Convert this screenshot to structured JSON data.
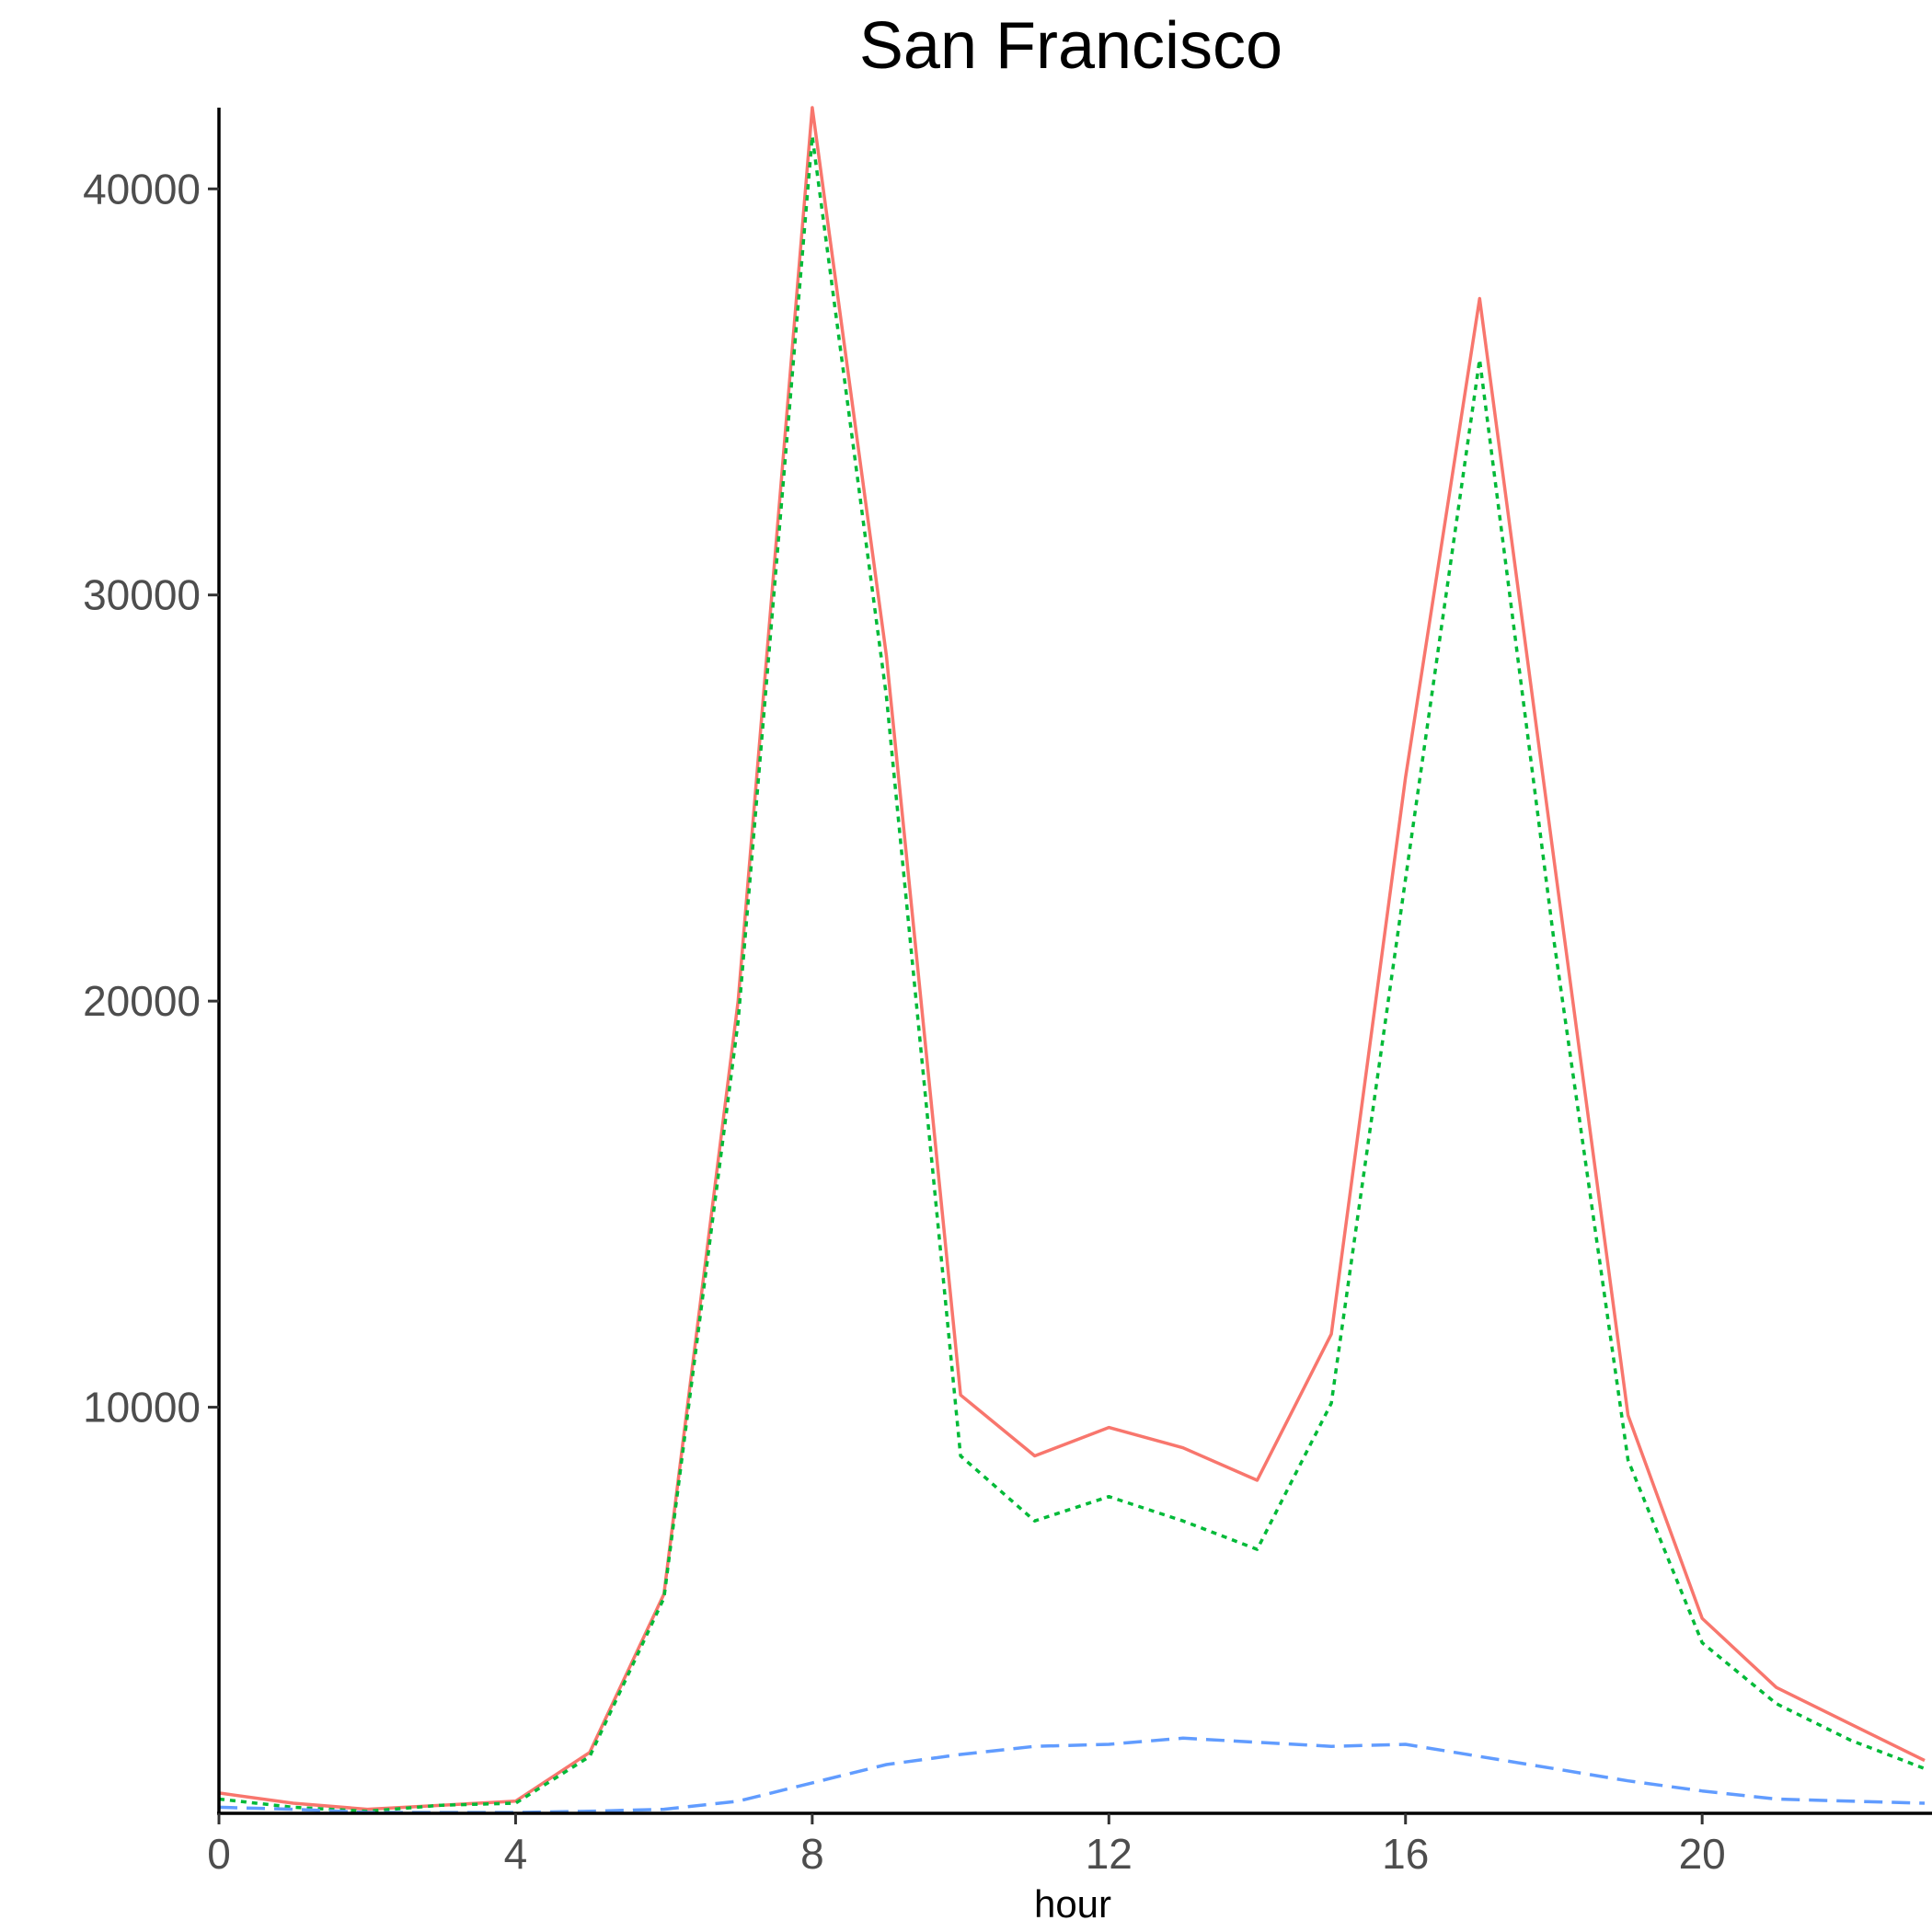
{
  "chart_data": {
    "type": "line",
    "title": "San Francisco",
    "xlabel": "hour",
    "ylabel": "",
    "xlim": [
      0,
      23
    ],
    "ylim": [
      0,
      42000
    ],
    "x_ticks": [
      0,
      4,
      8,
      12,
      16,
      20
    ],
    "y_ticks": [
      10000,
      20000,
      30000,
      40000
    ],
    "grid": false,
    "legend": "none",
    "x": [
      0,
      1,
      2,
      3,
      4,
      5,
      6,
      7,
      8,
      9,
      10,
      11,
      12,
      13,
      14,
      15,
      16,
      17,
      18,
      19,
      20,
      21,
      22,
      23
    ],
    "series": [
      {
        "color": "#F8766D",
        "dash": "solid",
        "values": [
          500,
          250,
          100,
          200,
          300,
          1500,
          5400,
          20000,
          42000,
          28500,
          10300,
          8800,
          9500,
          9000,
          8200,
          11800,
          25500,
          37300,
          23500,
          9800,
          4800,
          3100,
          2200,
          1300
        ]
      },
      {
        "color": "#00BA38",
        "dash": "dotted",
        "values": [
          350,
          150,
          50,
          200,
          250,
          1400,
          5300,
          19500,
          41300,
          27500,
          8800,
          7200,
          7800,
          7200,
          6500,
          10100,
          23000,
          35800,
          21500,
          8700,
          4200,
          2700,
          1800,
          1100
        ]
      },
      {
        "color": "#619CFF",
        "dash": "dashed",
        "values": [
          150,
          100,
          20,
          20,
          20,
          50,
          100,
          300,
          750,
          1200,
          1450,
          1650,
          1700,
          1850,
          1750,
          1650,
          1700,
          1400,
          1100,
          800,
          550,
          350,
          300,
          250
        ]
      }
    ]
  }
}
